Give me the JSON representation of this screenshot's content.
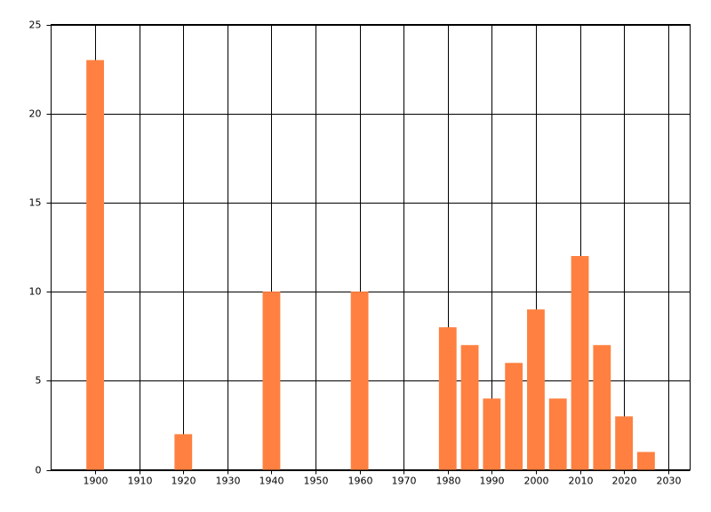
{
  "chart_data": {
    "type": "bar",
    "x": [
      1900,
      1920,
      1940,
      1960,
      1980,
      1985,
      1990,
      1995,
      2000,
      2005,
      2010,
      2015,
      2020,
      2025
    ],
    "values": [
      23,
      2,
      10,
      10,
      8,
      7,
      4,
      6,
      9,
      4,
      12,
      7,
      3,
      1
    ],
    "color": "#ff8040",
    "xlim": [
      1890,
      2035
    ],
    "xticks": [
      1900,
      1910,
      1920,
      1930,
      1940,
      1950,
      1960,
      1970,
      1980,
      1990,
      2000,
      2010,
      2020,
      2030
    ],
    "ylim": [
      0,
      25
    ],
    "yticks": [
      0,
      5,
      10,
      15,
      20,
      25
    ],
    "grid": true
  }
}
